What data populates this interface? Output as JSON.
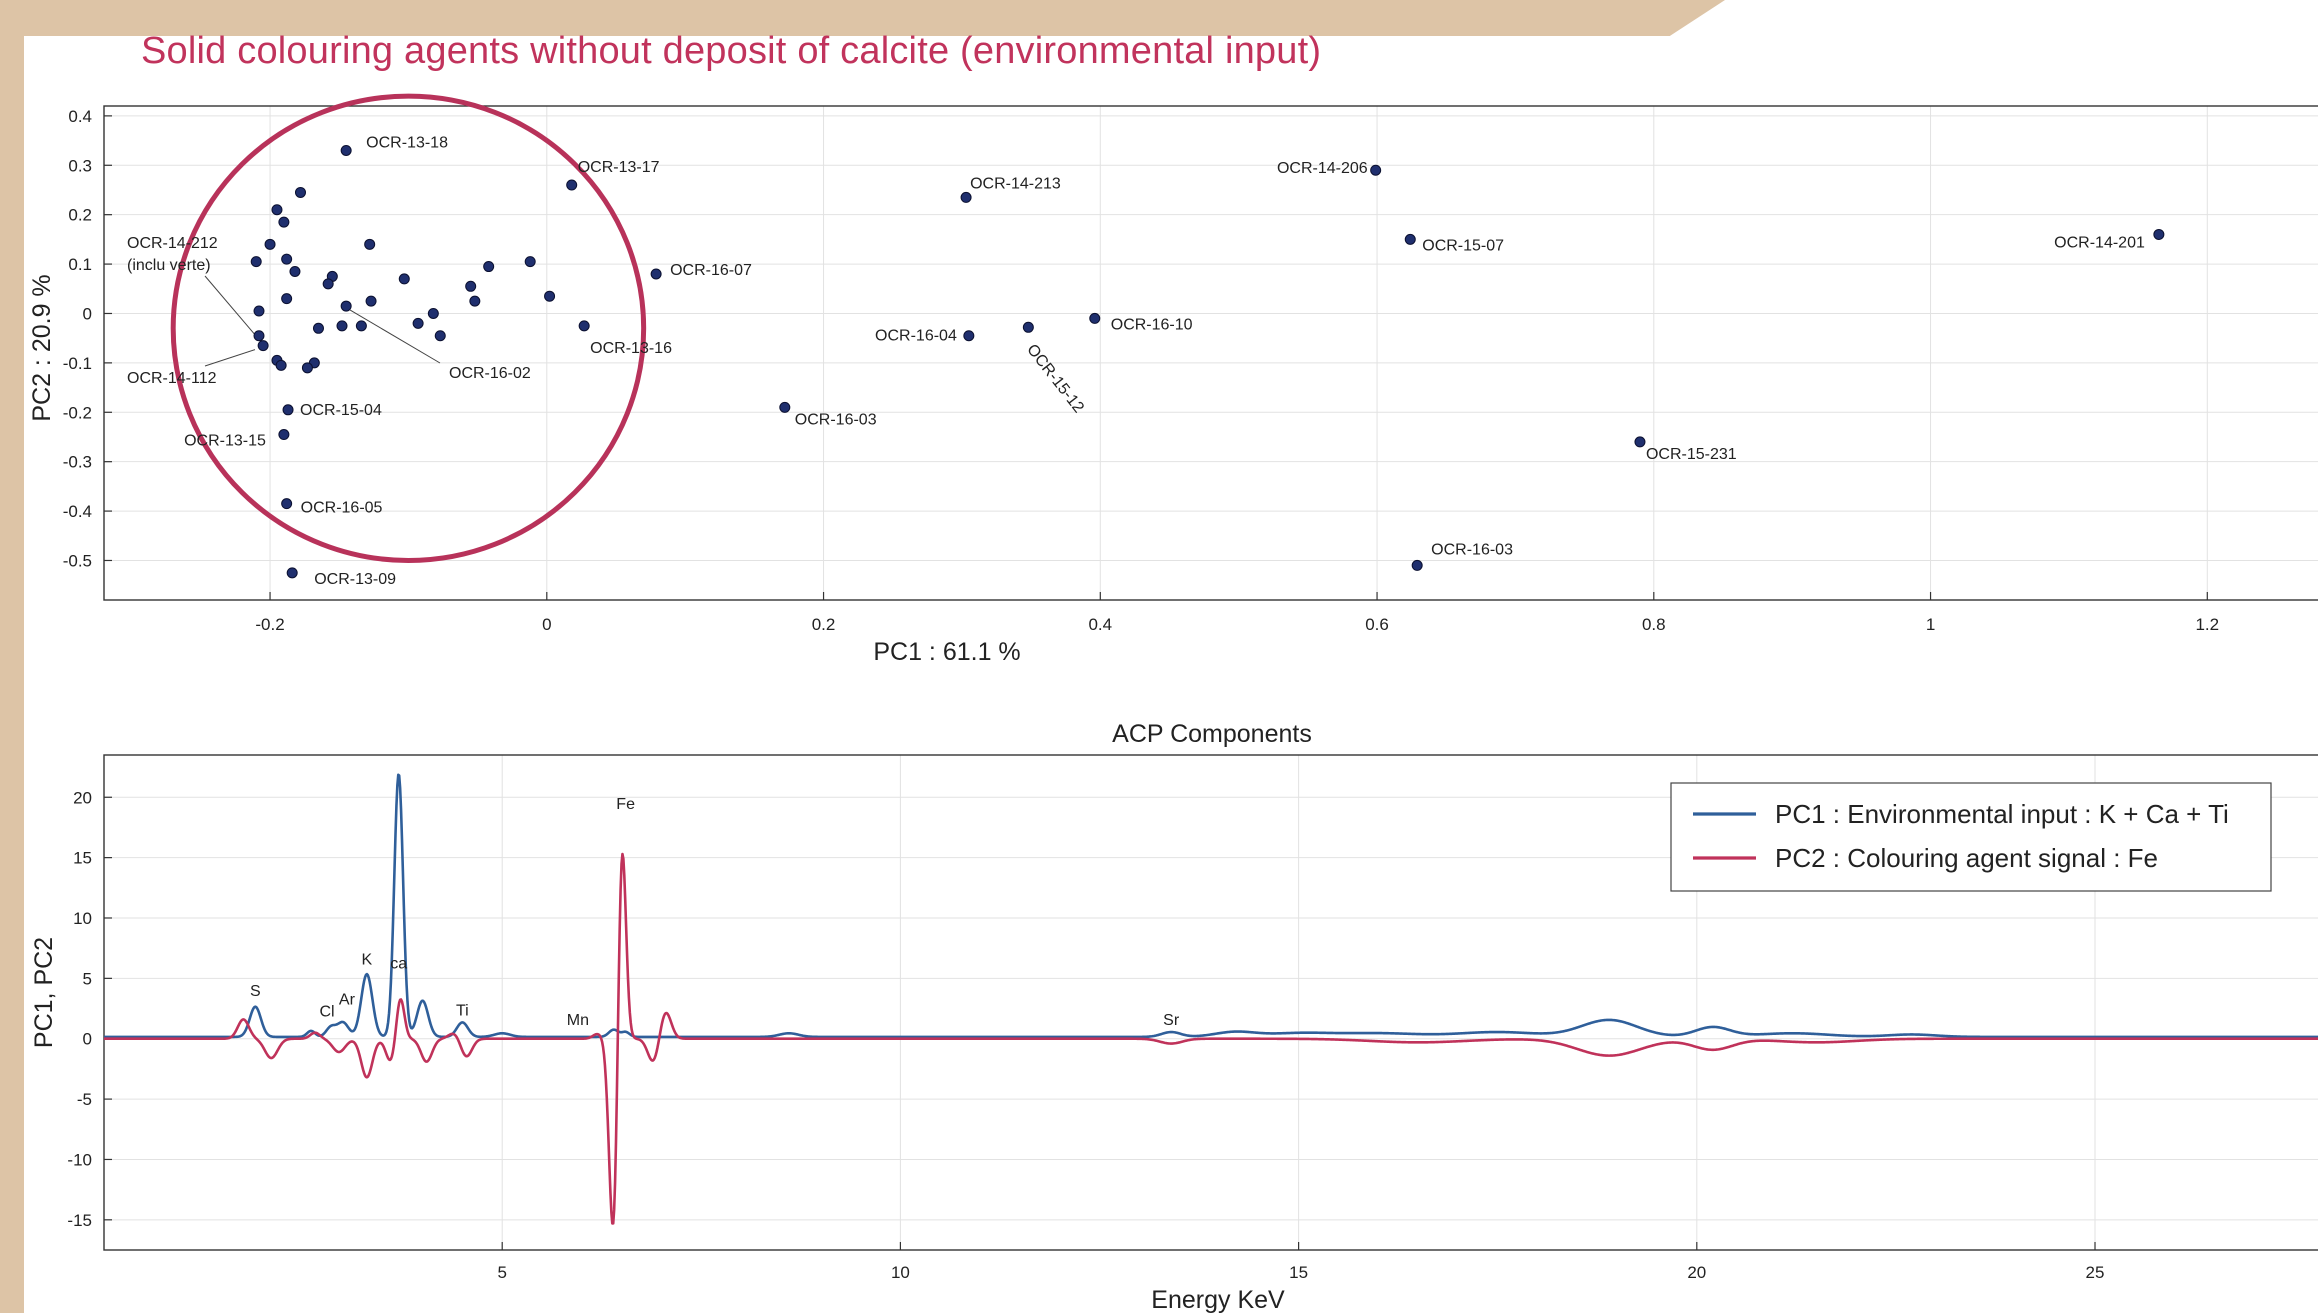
{
  "page_title": "Solid colouring agents without deposit of calcite (environmental input)",
  "chart_data": [
    {
      "type": "scatter",
      "title": "",
      "xlabel": "PC1 : 61.1 %",
      "ylabel": "PC2 : 20.9 %",
      "xlim": [
        -0.32,
        1.28
      ],
      "ylim": [
        -0.58,
        0.42
      ],
      "xticks": [
        -0.2,
        0,
        0.2,
        0.4,
        0.6,
        0.8,
        1,
        1.2
      ],
      "xtick_labels": [
        "-0.2",
        "0",
        "0.2",
        "0.4",
        "0.6",
        "0.8",
        "1",
        "1.2"
      ],
      "yticks": [
        0.4,
        0.3,
        0.2,
        0.1,
        0,
        -0.1,
        -0.2,
        -0.3,
        -0.4,
        -0.5
      ],
      "ytick_labels": [
        "0.4",
        "0.3",
        "0.2",
        "0.1",
        "0",
        "-0.1",
        "-0.2",
        "-0.3",
        "-0.4",
        "-0.5"
      ],
      "grid": true,
      "marker_color": "#1f2f6e",
      "highlight_color": "#b8325a",
      "points": [
        {
          "x": -0.145,
          "y": 0.33,
          "label": "OCR-13-18"
        },
        {
          "x": 0.018,
          "y": 0.26,
          "label": "OCR-13-17"
        },
        {
          "x": 0.079,
          "y": 0.08,
          "label": "OCR-16-07"
        },
        {
          "x": 0.027,
          "y": -0.025,
          "label": "OCR-13-16"
        },
        {
          "x": -0.187,
          "y": -0.195,
          "label": "OCR-15-04"
        },
        {
          "x": -0.19,
          "y": -0.245,
          "label": "OCR-13-15"
        },
        {
          "x": -0.188,
          "y": -0.385,
          "label": "OCR-16-05"
        },
        {
          "x": -0.184,
          "y": -0.525,
          "label": "OCR-13-09"
        },
        {
          "x": -0.208,
          "y": -0.045,
          "label": ""
        },
        {
          "x": -0.205,
          "y": -0.065,
          "label": ""
        },
        {
          "x": 0.172,
          "y": -0.19,
          "label": "OCR-16-03"
        },
        {
          "x": 0.303,
          "y": 0.235,
          "label": "OCR-14-213"
        },
        {
          "x": 0.305,
          "y": -0.045,
          "label": "OCR-16-04"
        },
        {
          "x": 0.348,
          "y": -0.028,
          "label": "OCR-15-12"
        },
        {
          "x": 0.396,
          "y": -0.01,
          "label": "OCR-16-10"
        },
        {
          "x": 0.599,
          "y": 0.29,
          "label": "OCR-14-206"
        },
        {
          "x": 0.624,
          "y": 0.15,
          "label": "OCR-15-07"
        },
        {
          "x": 0.629,
          "y": -0.51,
          "label": "OCR-16-03"
        },
        {
          "x": 0.79,
          "y": -0.26,
          "label": "OCR-15-231"
        },
        {
          "x": 1.165,
          "y": 0.16,
          "label": "OCR-14-201"
        },
        {
          "x": -0.178,
          "y": 0.245,
          "label": ""
        },
        {
          "x": -0.195,
          "y": 0.21,
          "label": ""
        },
        {
          "x": -0.19,
          "y": 0.185,
          "label": ""
        },
        {
          "x": -0.2,
          "y": 0.14,
          "label": ""
        },
        {
          "x": -0.21,
          "y": 0.105,
          "label": ""
        },
        {
          "x": -0.188,
          "y": 0.11,
          "label": ""
        },
        {
          "x": -0.182,
          "y": 0.085,
          "label": ""
        },
        {
          "x": -0.155,
          "y": 0.075,
          "label": ""
        },
        {
          "x": -0.158,
          "y": 0.06,
          "label": ""
        },
        {
          "x": -0.128,
          "y": 0.14,
          "label": ""
        },
        {
          "x": -0.103,
          "y": 0.07,
          "label": ""
        },
        {
          "x": -0.042,
          "y": 0.095,
          "label": ""
        },
        {
          "x": -0.012,
          "y": 0.105,
          "label": ""
        },
        {
          "x": -0.055,
          "y": 0.055,
          "label": ""
        },
        {
          "x": -0.052,
          "y": 0.025,
          "label": ""
        },
        {
          "x": 0.002,
          "y": 0.035,
          "label": ""
        },
        {
          "x": -0.188,
          "y": 0.03,
          "label": ""
        },
        {
          "x": -0.145,
          "y": 0.015,
          "label": ""
        },
        {
          "x": -0.127,
          "y": 0.025,
          "label": ""
        },
        {
          "x": -0.208,
          "y": 0.005,
          "label": ""
        },
        {
          "x": -0.082,
          "y": 0.0,
          "label": ""
        },
        {
          "x": -0.093,
          "y": -0.02,
          "label": ""
        },
        {
          "x": -0.148,
          "y": -0.025,
          "label": ""
        },
        {
          "x": -0.134,
          "y": -0.025,
          "label": ""
        },
        {
          "x": -0.165,
          "y": -0.03,
          "label": ""
        },
        {
          "x": -0.077,
          "y": -0.045,
          "label": ""
        },
        {
          "x": -0.195,
          "y": -0.095,
          "label": ""
        },
        {
          "x": -0.192,
          "y": -0.105,
          "label": ""
        },
        {
          "x": -0.168,
          "y": -0.1,
          "label": ""
        },
        {
          "x": -0.173,
          "y": -0.11,
          "label": ""
        }
      ],
      "annotations": [
        {
          "text": "OCR-14-212",
          "text2": "(inclu verte)",
          "target_x": -0.205,
          "target_y": -0.065
        },
        {
          "text": "OCR-14-112",
          "target_x": -0.208,
          "target_y": -0.065
        },
        {
          "text": "OCR-16-02",
          "target_x": -0.145,
          "target_y": 0.015
        }
      ],
      "highlight_ellipse": {
        "cx": -0.1,
        "cy": -0.03,
        "rx": 0.17,
        "ry": 0.47
      }
    },
    {
      "type": "line",
      "title": "ACP Components",
      "xlabel": "Energy KeV",
      "ylabel": "PC1, PC2",
      "xlim": [
        0,
        27.8
      ],
      "ylim": [
        -17.5,
        23.5
      ],
      "xticks": [
        5,
        10,
        15,
        20,
        25
      ],
      "xtick_labels": [
        "5",
        "10",
        "15",
        "20",
        "25"
      ],
      "yticks": [
        20,
        15,
        10,
        5,
        0,
        -5,
        -10,
        -15
      ],
      "ytick_labels": [
        "20",
        "15",
        "10",
        "5",
        "0",
        "-5",
        "-10",
        "-15"
      ],
      "grid": true,
      "legend_position": "top-right",
      "baseline": 0.15,
      "series": [
        {
          "name": "PC1 : Environmental input : K + Ca + Ti",
          "color": "#2f5f9a",
          "peaks": [
            [
              1.9,
              2.5,
              0.07
            ],
            [
              2.6,
              0.5,
              0.05
            ],
            [
              2.85,
              0.8,
              0.06
            ],
            [
              3.0,
              1.2,
              0.07
            ],
            [
              3.3,
              5.2,
              0.07
            ],
            [
              3.7,
              21.8,
              0.055
            ],
            [
              4.0,
              3.0,
              0.07
            ],
            [
              4.5,
              1.2,
              0.07
            ],
            [
              5.0,
              0.3,
              0.1
            ],
            [
              6.4,
              0.6,
              0.06
            ],
            [
              6.55,
              0.4,
              0.05
            ],
            [
              8.6,
              0.3,
              0.12
            ],
            [
              13.4,
              0.4,
              0.12
            ],
            [
              14.2,
              0.4,
              0.25
            ],
            [
              15.0,
              0.3,
              0.4
            ],
            [
              16.0,
              0.3,
              0.5
            ],
            [
              17.5,
              0.4,
              0.5
            ],
            [
              18.9,
              1.4,
              0.35
            ],
            [
              20.2,
              0.8,
              0.22
            ],
            [
              21.2,
              0.3,
              0.45
            ],
            [
              22.7,
              0.2,
              0.3
            ]
          ]
        },
        {
          "name": "PC2 : Colouring agent signal : Fe",
          "color": "#c0325a",
          "peaks": [
            [
              1.75,
              1.6,
              0.07
            ],
            [
              2.1,
              -1.6,
              0.08
            ],
            [
              2.65,
              0.5,
              0.06
            ],
            [
              2.95,
              -1.1,
              0.08
            ],
            [
              3.3,
              -3.2,
              0.07
            ],
            [
              3.6,
              -1.9,
              0.06
            ],
            [
              3.72,
              3.5,
              0.05
            ],
            [
              4.05,
              -1.9,
              0.07
            ],
            [
              4.4,
              0.5,
              0.07
            ],
            [
              4.55,
              -1.5,
              0.07
            ],
            [
              6.2,
              0.4,
              0.06
            ],
            [
              6.4,
              -17.3,
              0.055
            ],
            [
              6.5,
              -7.5,
              0.05
            ],
            [
              6.5,
              25.5,
              0.05
            ],
            [
              6.9,
              -2.0,
              0.07
            ],
            [
              7.05,
              2.3,
              0.07
            ],
            [
              13.4,
              -0.4,
              0.14
            ],
            [
              16.5,
              -0.3,
              0.6
            ],
            [
              18.9,
              -1.4,
              0.4
            ],
            [
              20.2,
              -0.9,
              0.25
            ],
            [
              21.5,
              -0.3,
              0.5
            ]
          ]
        }
      ],
      "peak_labels": [
        {
          "text": "S",
          "x": 1.9,
          "y": 3.2
        },
        {
          "text": "Cl",
          "x": 2.8,
          "y": 1.5
        },
        {
          "text": "Ar",
          "x": 3.05,
          "y": 2.5
        },
        {
          "text": "K",
          "x": 3.3,
          "y": 5.8
        },
        {
          "text": "ca",
          "x": 3.7,
          "y": 5.5
        },
        {
          "text": "Ti",
          "x": 4.5,
          "y": 1.6
        },
        {
          "text": "Mn",
          "x": 5.95,
          "y": 0.8
        },
        {
          "text": "Fe",
          "x": 6.55,
          "y": 18.7
        },
        {
          "text": "Sr",
          "x": 13.4,
          "y": 0.8
        }
      ]
    }
  ]
}
